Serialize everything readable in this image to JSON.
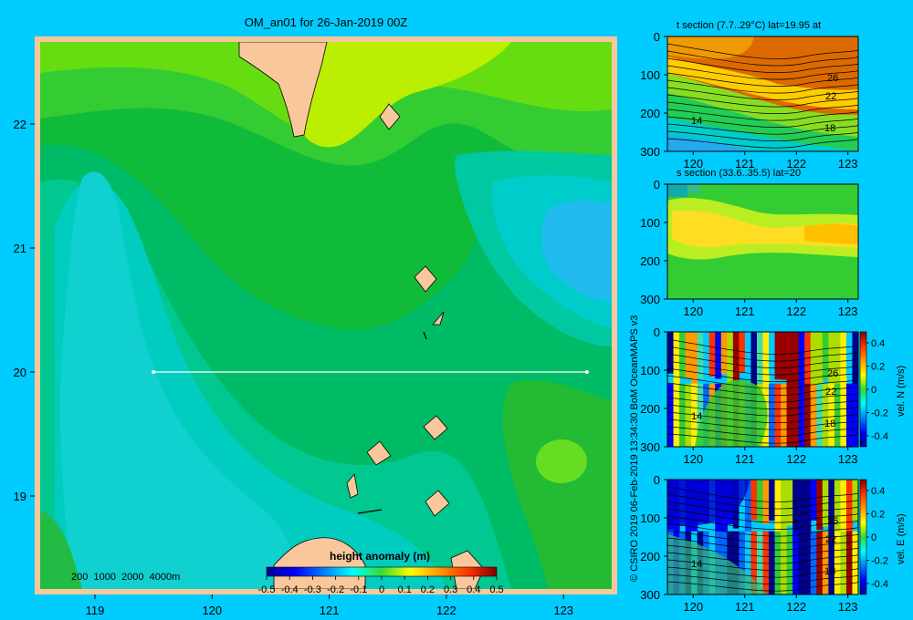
{
  "colors": {
    "background": "#00ccff",
    "land": "#f8c89c",
    "frame": "#f8c89c",
    "section_line": "#ffffff"
  },
  "main_map": {
    "title": "OM_an01 for 26-Jan-2019 00Z",
    "x_ticks": [
      "119",
      "120",
      "121",
      "122",
      "123"
    ],
    "y_ticks": [
      "22",
      "21",
      "20",
      "19"
    ],
    "depth_legend": "200  1000  2000  4000m",
    "colorbar_title": "height anomaly (m)",
    "colorbar_ticks": [
      "-0.5",
      "-0.4",
      "-0.3",
      "-0.2",
      "-0.1",
      "0",
      "0.1",
      "0.2",
      "0.3",
      "0.4",
      "0.5"
    ],
    "section_line": {
      "lat": 20,
      "lon_start": 119.5,
      "lon_end": 123.2
    }
  },
  "panels": [
    {
      "id": "t-section",
      "title": "t section (7.7..29°C) lat=19.95 at",
      "y_ticks": [
        "0",
        "100",
        "200",
        "300"
      ],
      "x_ticks": [
        "120",
        "121",
        "122",
        "123"
      ],
      "contour_labels": [
        "26",
        "22",
        "14",
        "18"
      ],
      "colorbar": null
    },
    {
      "id": "s-section",
      "title": "s section (33.6..35.5) lat=20",
      "y_ticks": [
        "0",
        "100",
        "200",
        "300"
      ],
      "x_ticks": [
        "120",
        "121",
        "122",
        "123"
      ],
      "contour_labels": [],
      "colorbar": null
    },
    {
      "id": "vel-n",
      "title": "",
      "y_ticks": [
        "0",
        "100",
        "200",
        "300"
      ],
      "x_ticks": [
        "120",
        "121",
        "122",
        "123"
      ],
      "contour_labels": [
        "26",
        "22",
        "14",
        "18"
      ],
      "colorbar": {
        "label": "vel. N (m/s)",
        "ticks": [
          "0.4",
          "0.2",
          "0",
          "-0.2",
          "-0.4"
        ]
      }
    },
    {
      "id": "vel-e",
      "title": "",
      "y_ticks": [
        "0",
        "100",
        "200",
        "300"
      ],
      "x_ticks": [
        "120",
        "121",
        "122",
        "123"
      ],
      "contour_labels": [
        "26",
        "22",
        "14",
        "18"
      ],
      "colorbar": {
        "label": "vel. E (m/s)",
        "ticks": [
          "0.4",
          "0.2",
          "0",
          "-0.2",
          "-0.4"
        ]
      }
    }
  ],
  "credit": "© CSIRO 2019   06-Feb-2019 13:34:30 BoM OceanMAPS v3",
  "chart_data": [
    {
      "type": "heatmap",
      "title": "OM_an01 for 26-Jan-2019 00Z",
      "xlabel": "",
      "ylabel": "",
      "xlim": [
        118.5,
        123.5
      ],
      "ylim": [
        18.3,
        22.7
      ],
      "variable": "height anomaly (m)",
      "color_range": [
        -0.5,
        0.5
      ],
      "field_samples": [
        {
          "lon": 119.6,
          "lat": 20.8,
          "value": 0.06
        },
        {
          "lon": 119.0,
          "lat": 20.4,
          "value": 0.05
        },
        {
          "lon": 120.6,
          "lat": 21.8,
          "value": 0.1
        },
        {
          "lon": 121.0,
          "lat": 22.5,
          "value": 0.22
        },
        {
          "lon": 122.0,
          "lat": 22.3,
          "value": 0.2
        },
        {
          "lon": 122.0,
          "lat": 20.6,
          "value": 0.13
        },
        {
          "lon": 122.6,
          "lat": 21.3,
          "value": 0.07
        },
        {
          "lon": 123.2,
          "lat": 20.9,
          "value": 0.02
        },
        {
          "lon": 123.0,
          "lat": 19.3,
          "value": 0.18
        },
        {
          "lon": 121.5,
          "lat": 18.6,
          "value": 0.06
        }
      ]
    },
    {
      "type": "heatmap",
      "title": "t section (7.7..29°C) lat=19.95 at",
      "xlim": [
        119.5,
        123.2
      ],
      "ylim": [
        300,
        0
      ],
      "contour_levels": [
        14,
        18,
        22,
        26
      ]
    },
    {
      "type": "heatmap",
      "title": "s section (33.6..35.5) lat=20",
      "xlim": [
        119.5,
        123.2
      ],
      "ylim": [
        300,
        0
      ]
    },
    {
      "type": "heatmap",
      "title": "",
      "variable": "vel. N (m/s)",
      "xlim": [
        119.5,
        123.2
      ],
      "ylim": [
        300,
        0
      ],
      "color_range": [
        -0.4,
        0.4
      ],
      "contour_levels": [
        14,
        18,
        22,
        26
      ]
    },
    {
      "type": "heatmap",
      "title": "",
      "variable": "vel. E (m/s)",
      "xlim": [
        119.5,
        123.2
      ],
      "ylim": [
        300,
        0
      ],
      "color_range": [
        -0.4,
        0.4
      ],
      "contour_levels": [
        14,
        18,
        22,
        26
      ]
    }
  ]
}
